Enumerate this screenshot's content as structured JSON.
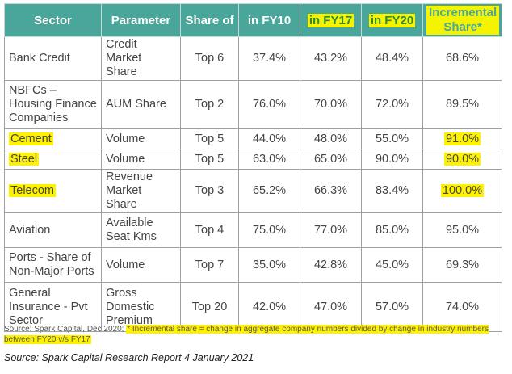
{
  "headers": {
    "sector": "Sector",
    "parameter": "Parameter",
    "share_of": "Share of",
    "fy10": "in FY10",
    "fy17": "in FY17",
    "fy20": "in FY20",
    "incremental_line1": "Incremental",
    "incremental_line2": "Share*"
  },
  "rows": [
    {
      "sector": "Bank Credit",
      "parameter": "Credit Market Share",
      "share_of": "Top 6",
      "fy10": "37.4%",
      "fy17": "43.2%",
      "fy20": "48.4%",
      "incremental": "68.6%"
    },
    {
      "sector": "NBFCs – Housing Finance Companies",
      "parameter": "AUM Share",
      "share_of": "Top 2",
      "fy10": "76.0%",
      "fy17": "70.0%",
      "fy20": "72.0%",
      "incremental": "89.5%"
    },
    {
      "sector": "Cement",
      "parameter": "Volume",
      "share_of": "Top 5",
      "fy10": "44.0%",
      "fy17": "48.0%",
      "fy20": "55.0%",
      "incremental": "91.0%"
    },
    {
      "sector": "Steel",
      "parameter": "Volume",
      "share_of": "Top 5",
      "fy10": "63.0%",
      "fy17": "65.0%",
      "fy20": "90.0%",
      "incremental": "90.0%"
    },
    {
      "sector": "Telecom",
      "parameter": "Revenue Market Share",
      "share_of": "Top 3",
      "fy10": "65.2%",
      "fy17": "66.3%",
      "fy20": "83.4%",
      "incremental": "100.0%"
    },
    {
      "sector": "Aviation",
      "parameter": "Available Seat Kms",
      "share_of": "Top 4",
      "fy10": "75.0%",
      "fy17": "77.0%",
      "fy20": "85.0%",
      "incremental": "95.0%"
    },
    {
      "sector": "Ports - Share of Non-Major Ports",
      "parameter": "Volume",
      "share_of": "Top 7",
      "fy10": "35.0%",
      "fy17": "42.8%",
      "fy20": "45.0%",
      "incremental": "69.3%"
    },
    {
      "sector": "General Insurance - Pvt Sector",
      "parameter": "Gross Domestic Premium",
      "share_of": "Top 20",
      "fy10": "42.0%",
      "fy17": "47.0%",
      "fy20": "57.0%",
      "incremental": "74.0%"
    }
  ],
  "footnote": {
    "source": "Source: Spark Capital, Dec 2020;",
    "note": "* Incremental share = change in aggregate company numbers divided by change in industry numbers between FY20 v/s FY17"
  },
  "caption": "Source: Spark Capital Research Report 4 January 2021",
  "colors": {
    "header_bg": "#4aa69a",
    "highlight": "#fff200",
    "border": "#9aa3a1"
  }
}
